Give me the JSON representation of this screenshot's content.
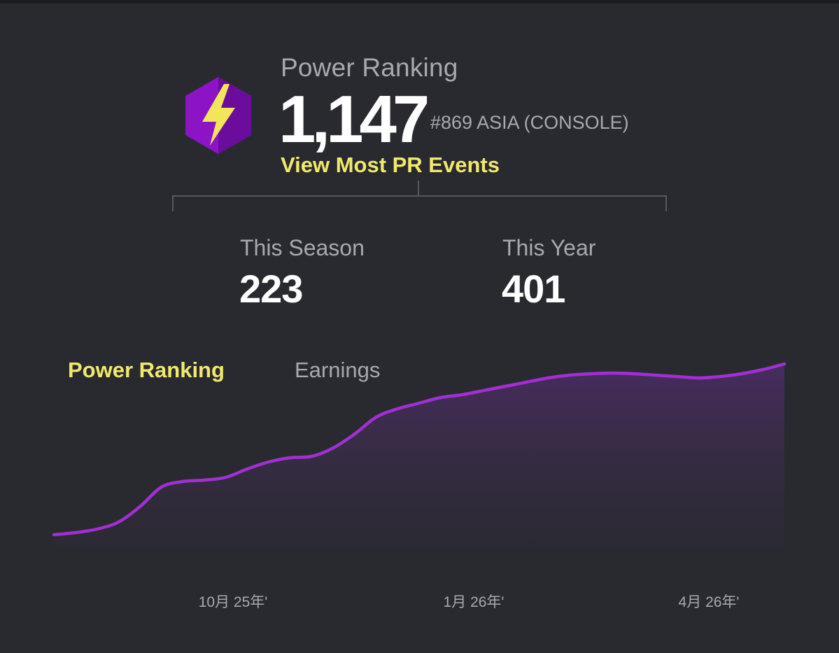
{
  "header": {
    "title": "Power Ranking",
    "value": "1,147",
    "rank": "#869 ASIA (CONSOLE)",
    "link": "View Most PR Events"
  },
  "stats": {
    "season_label": "This Season",
    "season_value": "223",
    "year_label": "This Year",
    "year_value": "401"
  },
  "tabs": {
    "power_ranking": "Power Ranking",
    "earnings": "Earnings"
  },
  "colors": {
    "line": "#a12fd2",
    "accent": "#f0e96b",
    "badge": "#8d14c6"
  },
  "icons": {
    "badge": "lightning-hexagon-icon"
  },
  "chart_data": {
    "type": "area",
    "x_ticks": [
      "10月 25年'",
      "1月 26年'",
      "4月 26年'"
    ],
    "series": [
      {
        "values": [
          18,
          19.5,
          22,
          27,
          38,
          52,
          56,
          57,
          59,
          65,
          70,
          73,
          74,
          80,
          90,
          102,
          108,
          112,
          116,
          118,
          121,
          124,
          127,
          130,
          132,
          133,
          133.5,
          133,
          132,
          131,
          130,
          131,
          133,
          136,
          140
        ]
      }
    ]
  }
}
